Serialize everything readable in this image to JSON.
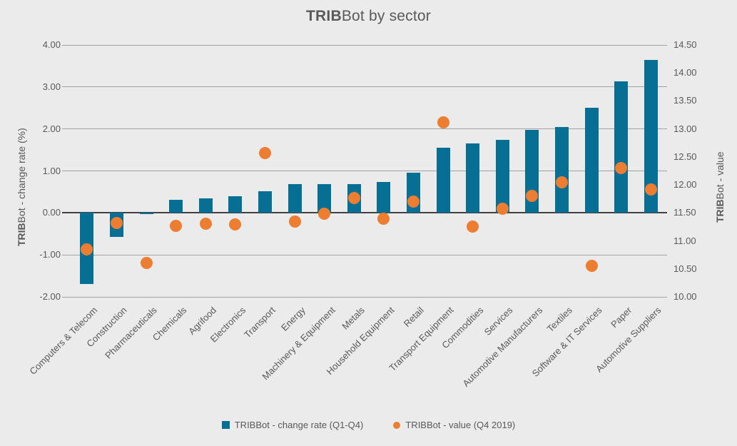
{
  "title": {
    "bold": "TRIB",
    "rest": "Bot by sector"
  },
  "left_axis_title": {
    "bold": "TRIB",
    "rest": "Bot - change rate (%)"
  },
  "right_axis_title": {
    "bold": "TRIB",
    "rest": "Bot - value"
  },
  "legend": {
    "bar_label": "TRIBBot - change rate (Q1-Q4)",
    "dot_label": "TRIBBot - value (Q4 2019)"
  },
  "colors": {
    "bar": "#076f94",
    "dot": "#ed7d31",
    "background": "#ebebeb",
    "gridline": "#a3a3a3",
    "zero_line": "#404040",
    "text": "#595959"
  },
  "chart_data": {
    "type": "bar",
    "subtype": "combo bar + scatter, dual axis",
    "title": "TRIBBot by sector",
    "categories": [
      "Computers & Telecom",
      "Construction",
      "Pharmaceuticals",
      "Chemicals",
      "Agrifood",
      "Electronics",
      "Transport",
      "Energy",
      "Machinery & Equipment",
      "Metals",
      "Household Equipment",
      "Retail",
      "Transport Equipment",
      "Commodities",
      "Services",
      "Automotive Manufacturers",
      "Textiles",
      "Software & IT Services",
      "Paper",
      "Automotive Suppliers"
    ],
    "series": [
      {
        "name": "TRIBBot - change rate (Q1-Q4)",
        "type": "bar",
        "axis": "left",
        "color": "#076f94",
        "values": [
          -1.69,
          -0.57,
          -0.03,
          0.31,
          0.35,
          0.4,
          0.52,
          0.68,
          0.68,
          0.69,
          0.74,
          0.95,
          1.56,
          1.65,
          1.74,
          1.98,
          2.05,
          2.5,
          3.13,
          3.64
        ]
      },
      {
        "name": "TRIBBot - value (Q4 2019)",
        "type": "scatter",
        "axis": "right",
        "color": "#ed7d31",
        "values": [
          10.85,
          11.32,
          10.6,
          11.27,
          11.31,
          11.29,
          12.57,
          11.35,
          11.48,
          11.77,
          11.39,
          11.7,
          13.12,
          11.26,
          11.58,
          11.81,
          12.04,
          10.56,
          12.3,
          11.92
        ]
      }
    ],
    "left_axis": {
      "label": "TRIBBot - change rate (%)",
      "min": -2,
      "max": 4,
      "ticks": [
        4,
        3,
        2,
        1,
        0,
        -1,
        -2
      ],
      "tick_labels": [
        "4.00",
        "3.00",
        "2.00",
        "1.00",
        "0.00",
        "-1.00",
        "-2.00"
      ]
    },
    "right_axis": {
      "label": "TRIBBot - value",
      "min": 10,
      "max": 14.5,
      "ticks": [
        14.5,
        14,
        13.5,
        13,
        12.5,
        12,
        11.5,
        11,
        10.5,
        10
      ],
      "tick_labels": [
        "14.50",
        "14.00",
        "13.50",
        "13.00",
        "12.50",
        "12.00",
        "11.50",
        "11.00",
        "10.50",
        "10.00"
      ]
    },
    "grid": true,
    "legend_position": "bottom"
  }
}
